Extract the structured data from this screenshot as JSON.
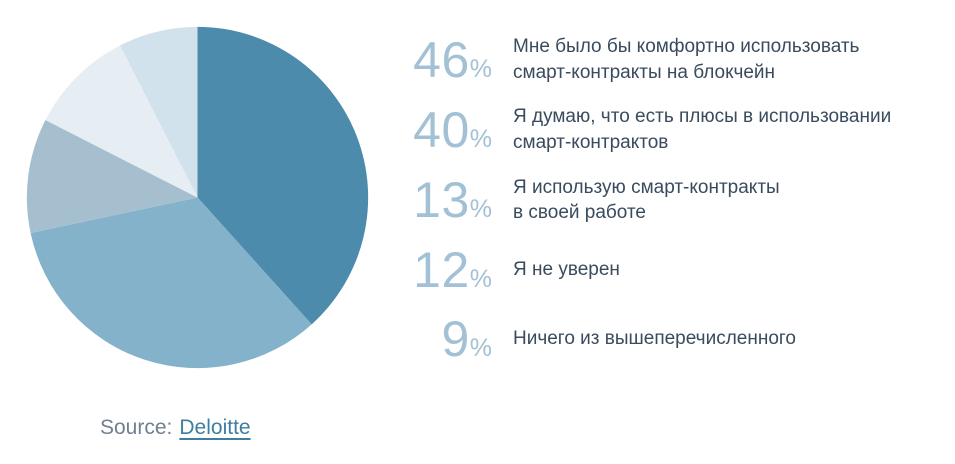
{
  "percent_sign": "%",
  "chart_data": {
    "type": "pie",
    "categories": [
      "Мне было бы комфортно использовать смарт-контракты на блокчейн",
      "Я думаю, что есть плюсы в использовании смарт-контрактов",
      "Я использую смарт-контракты в своей работе",
      "Я не уверен",
      "Ничего из вышеперечисленного"
    ],
    "values": [
      46,
      40,
      13,
      12,
      9
    ],
    "unit": "%",
    "colors": [
      "#4d8bad",
      "#83b2ca",
      "#a6bfcf",
      "#e7eef3",
      "#d2e2ec"
    ],
    "legend_position": "right",
    "start_angle_deg": 0,
    "direction": "clockwise",
    "title": "",
    "source": "Deloitte"
  },
  "legend": {
    "items": [
      {
        "pct": "46",
        "line1": "Мне было бы комфортно использовать",
        "line2": "смарт-контракты на блокчейн"
      },
      {
        "pct": "40",
        "line1": "Я думаю, что есть плюсы в использовании",
        "line2": "смарт-контрактов"
      },
      {
        "pct": "13",
        "line1": "Я использую смарт-контракты",
        "line2": "в своей работе"
      },
      {
        "pct": "12",
        "line1": "Я не уверен",
        "line2": ""
      },
      {
        "pct": "9",
        "line1": "Ничего из вышеперечисленного",
        "line2": ""
      }
    ]
  },
  "source": {
    "label": "Source:",
    "link": "Deloitte"
  }
}
